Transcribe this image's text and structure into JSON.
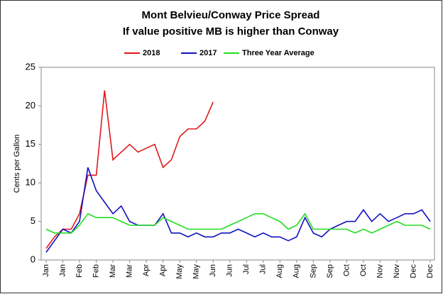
{
  "chart_data": {
    "type": "line",
    "title": "Mont Belvieu/Conway Price Spread",
    "subtitle": "If value positive MB is higher than Conway",
    "y_label": "Cents per Gallon",
    "categories": [
      "Jan",
      null,
      "Jan",
      null,
      "Feb",
      null,
      "Feb",
      null,
      "Mar",
      null,
      "Mar",
      null,
      "Apr",
      null,
      "Apr",
      null,
      "May",
      null,
      "May",
      null,
      "Jun",
      null,
      "Jun",
      null,
      "Jul",
      null,
      "Jul",
      null,
      "Aug",
      null,
      "Aug",
      null,
      "Sep",
      null,
      "Sep",
      null,
      "Oct",
      null,
      "Oct",
      null,
      "Nov",
      null,
      "Nov",
      null,
      "Dec",
      null,
      "Dec"
    ],
    "series": [
      {
        "name": "2018",
        "color": "#e01818",
        "values": [
          1.5,
          3,
          4,
          4,
          6,
          11,
          11,
          22,
          13,
          14,
          15,
          14,
          14.5,
          15,
          12,
          13,
          16,
          17,
          17,
          18,
          20.5,
          null,
          null,
          null,
          null,
          null,
          null,
          null,
          null,
          null,
          null,
          null,
          null,
          null,
          null,
          null,
          null,
          null,
          null,
          null,
          null,
          null,
          null,
          null,
          null,
          null,
          null
        ]
      },
      {
        "name": "2017",
        "color": "#1010c0",
        "values": [
          1,
          2.5,
          4,
          3.5,
          5,
          12,
          9,
          7.5,
          6,
          7,
          5,
          4.5,
          4.5,
          4.5,
          6,
          3.5,
          3.5,
          3,
          3.5,
          3,
          3,
          3.5,
          3.5,
          4,
          3.5,
          3,
          3.5,
          3,
          3,
          2.5,
          3,
          5.5,
          3.5,
          3,
          4,
          4.5,
          5,
          5,
          6.5,
          5,
          6,
          5,
          5.5,
          6,
          6,
          6.5,
          5
        ]
      },
      {
        "name": "Three Year Average",
        "color": "#22dd22",
        "values": [
          4,
          3.5,
          3.5,
          3.5,
          4.5,
          6,
          5.5,
          5.5,
          5.5,
          5,
          4.5,
          4.5,
          4.5,
          4.5,
          5.5,
          5,
          4.5,
          4,
          4,
          4,
          4,
          4,
          4.5,
          5,
          5.5,
          6,
          6,
          5.5,
          5,
          4,
          4.5,
          6,
          4,
          4,
          4,
          4,
          4,
          3.5,
          4,
          3.5,
          4,
          4.5,
          5,
          4.5,
          4.5,
          4.5,
          4
        ]
      }
    ],
    "ylim": [
      0,
      25
    ],
    "yticks": [
      0,
      5,
      10,
      15,
      20,
      25
    ],
    "grid": false,
    "legend": "top"
  }
}
